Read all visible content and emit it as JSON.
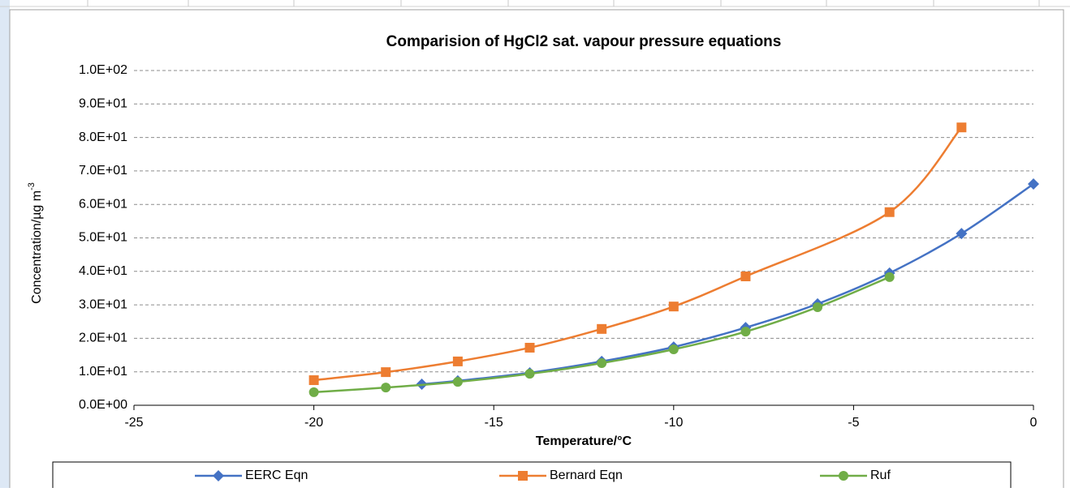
{
  "chart_data": {
    "type": "line",
    "title": "Comparision of HgCl2 sat. vapour pressure equations",
    "x_label": "Temperature/°C",
    "y_label": "Concentration/µg m",
    "y_label_sup": "-3",
    "xlim": [
      -25,
      0
    ],
    "xticks": [
      -25,
      -20,
      -15,
      -10,
      -5,
      0
    ],
    "ylim": [
      0,
      100
    ],
    "yticks": [
      {
        "value": 0,
        "label": "0.0E+00"
      },
      {
        "value": 10,
        "label": "1.0E+01"
      },
      {
        "value": 20,
        "label": "2.0E+01"
      },
      {
        "value": 30,
        "label": "3.0E+01"
      },
      {
        "value": 40,
        "label": "4.0E+01"
      },
      {
        "value": 50,
        "label": "5.0E+01"
      },
      {
        "value": 60,
        "label": "6.0E+01"
      },
      {
        "value": 70,
        "label": "7.0E+01"
      },
      {
        "value": 80,
        "label": "8.0E+01"
      },
      {
        "value": 90,
        "label": "9.0E+01"
      },
      {
        "value": 100,
        "label": "1.0E+02"
      }
    ],
    "grid": true,
    "legend": "bottom",
    "series": [
      {
        "name": "EERC Eqn",
        "color": "#4472c4",
        "marker": "diamond",
        "x": [
          -17,
          -16,
          -14,
          -12,
          -10,
          -8,
          -6,
          -4,
          -2,
          0
        ],
        "values": [
          6.3,
          7.3,
          9.7,
          13.1,
          17.4,
          23.2,
          30.3,
          39.5,
          51.3,
          66.1
        ]
      },
      {
        "name": "Bernard Eqn",
        "color": "#ed7d31",
        "marker": "square",
        "x": [
          -20,
          -18,
          -16,
          -14,
          -12,
          -10,
          -8,
          -4,
          -2
        ],
        "values": [
          7.5,
          9.9,
          13.1,
          17.2,
          22.8,
          29.5,
          38.5,
          57.7,
          83.0
        ]
      },
      {
        "name": "Ruf",
        "color": "#70ad47",
        "marker": "circle",
        "x": [
          -20,
          -18,
          -16,
          -14,
          -12,
          -10,
          -8,
          -6,
          -4
        ],
        "values": [
          3.9,
          5.3,
          7.0,
          9.4,
          12.6,
          16.7,
          22.0,
          29.3,
          38.3
        ]
      }
    ]
  }
}
